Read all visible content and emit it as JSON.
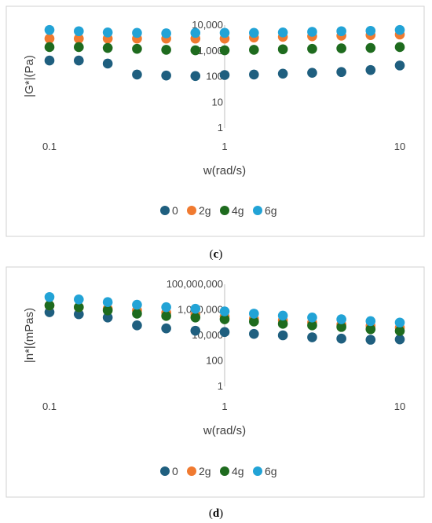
{
  "chart_data": [
    {
      "type": "scatter",
      "caption": "(c)",
      "xlabel": "w(rad/s)",
      "ylabel": "|G*|(Pa)",
      "x_scale": "log",
      "y_scale": "log",
      "xlim": [
        0.1,
        10
      ],
      "ylim": [
        1,
        10000
      ],
      "x_ticks": [
        "0.1",
        "1",
        "10"
      ],
      "y_ticks": [
        "1",
        "10",
        "100",
        "1,000",
        "10,000"
      ],
      "grid": false,
      "legend_position": "bottom",
      "x": [
        0.1,
        0.147,
        0.215,
        0.316,
        0.464,
        0.681,
        1,
        1.47,
        2.15,
        3.16,
        4.64,
        6.81,
        10
      ],
      "series": [
        {
          "name": "0",
          "color": "#1f5f7f",
          "values": [
            420,
            420,
            320,
            120,
            110,
            105,
            115,
            120,
            130,
            140,
            150,
            180,
            270
          ]
        },
        {
          "name": "2g",
          "color": "#f07a30",
          "values": [
            3000,
            3000,
            3000,
            3000,
            3000,
            3000,
            3000,
            3300,
            3500,
            3700,
            3900,
            4100,
            4300
          ]
        },
        {
          "name": "4g",
          "color": "#1e6b1e",
          "values": [
            1400,
            1400,
            1300,
            1200,
            1100,
            1050,
            1050,
            1100,
            1150,
            1200,
            1250,
            1300,
            1400
          ]
        },
        {
          "name": "6g",
          "color": "#22a3d6",
          "values": [
            6500,
            5800,
            5200,
            5000,
            4800,
            5000,
            5000,
            5000,
            5200,
            5500,
            5800,
            6000,
            6500
          ]
        }
      ]
    },
    {
      "type": "scatter",
      "caption": "(d)",
      "xlabel": "w(rad/s)",
      "ylabel": "|n*|(mPas)",
      "x_scale": "log",
      "y_scale": "log",
      "xlim": [
        0.1,
        10
      ],
      "ylim": [
        1,
        100000000
      ],
      "x_ticks": [
        "0.1",
        "1",
        "10"
      ],
      "y_ticks": [
        "1",
        "100",
        "10,000",
        "1,000,000",
        "100,000,000"
      ],
      "grid": false,
      "legend_position": "bottom",
      "x": [
        0.1,
        0.147,
        0.215,
        0.316,
        0.464,
        0.681,
        1,
        1.47,
        2.15,
        3.16,
        4.64,
        6.81,
        10
      ],
      "series": [
        {
          "name": "0",
          "color": "#1f5f7f",
          "values": [
            650000,
            450000,
            250000,
            60000,
            35000,
            23000,
            18000,
            13000,
            10000,
            7000,
            5500,
            4500,
            4800
          ]
        },
        {
          "name": "2g",
          "color": "#f07a30",
          "values": [
            2200000,
            1600000,
            1200000,
            900000,
            600000,
            450000,
            300000,
            200000,
            150000,
            100000,
            70000,
            55000,
            40000
          ]
        },
        {
          "name": "4g",
          "color": "#1e6b1e",
          "values": [
            2200000,
            1600000,
            900000,
            500000,
            330000,
            250000,
            180000,
            120000,
            80000,
            60000,
            45000,
            30000,
            22000
          ]
        },
        {
          "name": "6g",
          "color": "#22a3d6",
          "values": [
            10000000,
            6500000,
            4000000,
            2500000,
            1600000,
            1200000,
            750000,
            500000,
            350000,
            250000,
            180000,
            130000,
            100000
          ]
        }
      ]
    }
  ]
}
